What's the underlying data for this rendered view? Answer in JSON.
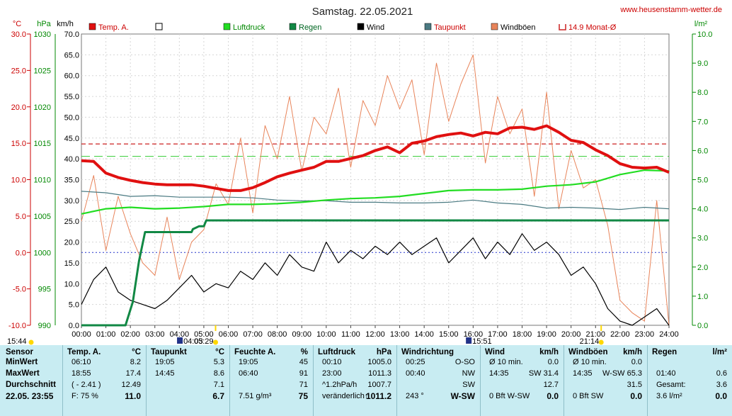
{
  "header": {
    "title": "Samstag. 22.05.2021",
    "website": "www.heusenstamm-wetter.de",
    "unit_temp": "°C",
    "unit_hpa": "hPa",
    "unit_kmh": "km/h",
    "unit_rain": "l/m²"
  },
  "legend": [
    {
      "label": "Temp. A.",
      "color": "#e01010",
      "style": "box"
    },
    {
      "label": "",
      "color": "#ffffff",
      "style": "box-empty"
    },
    {
      "label": "Luftdruck",
      "color": "#22dd22",
      "style": "box"
    },
    {
      "label": "Regen",
      "color": "#118844",
      "style": "box"
    },
    {
      "label": "Wind",
      "color": "#000000",
      "style": "box"
    },
    {
      "label": "Taupunkt",
      "color": "#4a7a82",
      "style": "box"
    },
    {
      "label": "Windböen",
      "color": "#e8845a",
      "style": "box"
    },
    {
      "label": "14.9 Monat-Ø",
      "color": "#cc2222",
      "style": "bracket"
    }
  ],
  "markers": {
    "left_time": "15:44",
    "moon_mark_1": "04:03",
    "sunrise": "05:29",
    "moon_mark_2": "15:51",
    "sunset": "21:14"
  },
  "chart_data": {
    "type": "line",
    "title": "Samstag. 22.05.2021",
    "x_ticks": [
      "00:00",
      "01:00",
      "02:00",
      "03:00",
      "04:00",
      "05:00",
      "06:00",
      "07:00",
      "08:00",
      "09:00",
      "10:00",
      "11:00",
      "12:00",
      "13:00",
      "14:00",
      "15:00",
      "16:00",
      "17:00",
      "18:00",
      "19:00",
      "20:00",
      "21:00",
      "22:00",
      "23:00",
      "24:00"
    ],
    "axes": {
      "temp": {
        "unit": "°C",
        "min": -10,
        "max": 30,
        "ticks": [
          "30.0",
          "25.0",
          "20.0",
          "15.0",
          "10.0",
          "5.0",
          "0.0",
          "-5.0",
          "-10.0"
        ]
      },
      "pressure": {
        "unit": "hPa",
        "min": 990,
        "max": 1030,
        "ticks": [
          "1030",
          "1025",
          "1020",
          "1015",
          "1010",
          "1005",
          "1000",
          "995",
          "990"
        ]
      },
      "wind": {
        "unit": "km/h",
        "min": 0,
        "max": 70,
        "ticks": [
          "70.0",
          "65.0",
          "60.0",
          "55.0",
          "50.0",
          "45.0",
          "40.0",
          "35.0",
          "30.0",
          "25.0",
          "20.0",
          "15.0",
          "10.0",
          "5.0",
          "0.0"
        ]
      },
      "rain": {
        "unit": "l/m²",
        "min": 0,
        "max": 10,
        "ticks": [
          "10.0",
          "9.0",
          "8.0",
          "7.0",
          "6.0",
          "5.0",
          "4.0",
          "3.0",
          "2.0",
          "1.0",
          "0.0"
        ]
      }
    },
    "reference_lines": {
      "monthly_avg_temp": 14.9,
      "pressure_ref": 1013.2,
      "zero_temp": 0.0
    },
    "series": [
      {
        "name": "Temp. A.",
        "axis": "temp",
        "color": "#e01010",
        "x": [
          0,
          0.5,
          1,
          1.5,
          2,
          2.5,
          3,
          3.5,
          4,
          4.5,
          5,
          5.5,
          6,
          6.5,
          7,
          7.5,
          8,
          8.5,
          9,
          9.5,
          10,
          10.5,
          11,
          11.5,
          12,
          12.5,
          13,
          13.5,
          14,
          14.5,
          15,
          15.5,
          16,
          16.5,
          17,
          17.5,
          18,
          18.5,
          19,
          19.5,
          20,
          20.5,
          21,
          21.5,
          22,
          22.5,
          23,
          23.5,
          24
        ],
        "y": [
          12.6,
          12.5,
          10.9,
          10.3,
          9.9,
          9.6,
          9.4,
          9.3,
          9.3,
          9.3,
          9.1,
          8.8,
          8.5,
          8.5,
          8.9,
          9.6,
          10.4,
          10.9,
          11.3,
          11.7,
          12.5,
          12.5,
          12.9,
          13.3,
          14.0,
          14.5,
          13.7,
          15.0,
          15.3,
          15.9,
          16.2,
          16.4,
          16.0,
          16.5,
          16.3,
          17.1,
          17.2,
          16.9,
          17.4,
          16.5,
          15.4,
          15.1,
          14.1,
          13.3,
          12.2,
          11.7,
          11.6,
          11.7,
          11.0
        ]
      },
      {
        "name": "Taupunkt",
        "axis": "temp",
        "color": "#4a7a82",
        "x": [
          0,
          1,
          2,
          3,
          4,
          5,
          6,
          7,
          8,
          9,
          10,
          11,
          12,
          13,
          14,
          15,
          16,
          17,
          18,
          19,
          20,
          21,
          22,
          23,
          24
        ],
        "y": [
          8.4,
          8.2,
          7.7,
          7.8,
          7.6,
          7.6,
          7.6,
          7.5,
          7.2,
          7.1,
          7.1,
          6.9,
          6.9,
          6.8,
          6.8,
          6.9,
          7.2,
          6.8,
          6.6,
          6.1,
          6.2,
          6.1,
          5.9,
          6.2,
          6.0
        ]
      },
      {
        "name": "Luftdruck",
        "axis": "pressure",
        "color": "#22dd22",
        "x": [
          0,
          1,
          2,
          3,
          4,
          5,
          6,
          7,
          8,
          9,
          10,
          11,
          12,
          13,
          14,
          15,
          16,
          17,
          18,
          19,
          20,
          21,
          22,
          23,
          24
        ],
        "y": [
          1005.3,
          1006.0,
          1006.2,
          1006.0,
          1006.1,
          1006.3,
          1006.6,
          1006.6,
          1006.7,
          1006.9,
          1007.2,
          1007.4,
          1007.5,
          1007.7,
          1008.1,
          1008.5,
          1008.6,
          1008.6,
          1008.7,
          1009.1,
          1009.3,
          1009.7,
          1010.7,
          1011.3,
          1011.2
        ]
      },
      {
        "name": "Regen",
        "axis": "rain",
        "color": "#118844",
        "x": [
          0,
          1.2,
          1.8,
          2.1,
          2.35,
          2.6,
          2.9,
          3.5,
          4.2,
          4.5,
          4.55,
          4.8,
          5.0,
          5.1,
          6,
          12,
          18,
          24
        ],
        "y": [
          0,
          0,
          0,
          0.8,
          2.2,
          3.2,
          3.2,
          3.2,
          3.2,
          3.2,
          3.3,
          3.4,
          3.4,
          3.6,
          3.6,
          3.6,
          3.6,
          3.6
        ]
      },
      {
        "name": "Wind",
        "axis": "wind",
        "color": "#000000",
        "x": [
          0,
          0.5,
          1,
          1.5,
          2,
          2.5,
          3,
          3.5,
          4,
          4.5,
          5,
          5.5,
          6,
          6.5,
          7,
          7.5,
          8,
          8.5,
          9,
          9.5,
          10,
          10.5,
          11,
          11.5,
          12,
          12.5,
          13,
          13.5,
          14,
          14.5,
          15,
          15.5,
          16,
          16.5,
          17,
          17.5,
          18,
          18.5,
          19,
          19.5,
          20,
          20.5,
          21,
          21.5,
          22,
          22.5,
          23,
          23.5,
          24
        ],
        "y": [
          5.0,
          11.0,
          14.0,
          8.0,
          6.0,
          5.0,
          4.0,
          6.0,
          9.0,
          12.0,
          8.0,
          10.0,
          9.0,
          13.0,
          11.0,
          15.0,
          12.0,
          17.0,
          14.0,
          13.0,
          20.0,
          15.0,
          18.0,
          16.0,
          19.0,
          17.0,
          20.0,
          17.0,
          19.0,
          21.0,
          15.0,
          18.0,
          21.0,
          16.0,
          20.0,
          17.0,
          22.0,
          18.0,
          20.0,
          17.0,
          12.0,
          14.0,
          10.0,
          4.0,
          1.0,
          0.0,
          2.0,
          4.0,
          0.0
        ]
      },
      {
        "name": "Windböen",
        "axis": "wind",
        "color": "#e8845a",
        "x": [
          0,
          0.5,
          1,
          1.5,
          2,
          2.5,
          3,
          3.5,
          4,
          4.5,
          5,
          5.5,
          6,
          6.5,
          7,
          7.5,
          8,
          8.5,
          9,
          9.5,
          10,
          10.5,
          11,
          11.5,
          12,
          12.5,
          13,
          13.5,
          14,
          14.5,
          15,
          15.5,
          16,
          16.5,
          17,
          17.5,
          18,
          18.5,
          19,
          19.5,
          20,
          20.5,
          21,
          21.5,
          22,
          22.5,
          23,
          23.5,
          24
        ],
        "y": [
          25.0,
          36.0,
          18.0,
          31.0,
          22.0,
          15.0,
          12.0,
          26.0,
          11.0,
          20.0,
          23.0,
          34.0,
          29.0,
          45.0,
          27.0,
          48.0,
          40.0,
          55.0,
          37.0,
          50.0,
          46.0,
          57.0,
          38.0,
          54.0,
          48.0,
          60.0,
          52.0,
          59.0,
          41.0,
          63.0,
          49.0,
          58.0,
          65.0,
          39.0,
          55.0,
          46.0,
          52.0,
          31.0,
          56.0,
          28.0,
          42.0,
          33.0,
          35.0,
          24.0,
          6.0,
          3.0,
          1.0,
          30.0,
          0.0
        ]
      }
    ]
  },
  "stats": {
    "sensor": {
      "header": "Sensor",
      "rows": [
        "MinWert",
        "MaxWert",
        "Durchschnitt",
        "22.05. 23:55"
      ]
    },
    "temp": {
      "header": "Temp. A.",
      "unit": "°C",
      "rows": [
        [
          "06:10",
          "8.2"
        ],
        [
          "18:55",
          "17.4"
        ],
        [
          "( - 2.41 )",
          "12.49"
        ],
        [
          "F: 75 %",
          "11.0"
        ]
      ]
    },
    "taupunkt": {
      "header": "Taupunkt",
      "unit": "°C",
      "rows": [
        [
          "19:05",
          "5.3"
        ],
        [
          "14:45",
          "8.6"
        ],
        [
          "",
          "7.1"
        ],
        [
          "",
          "6.7"
        ]
      ]
    },
    "feuchte": {
      "header": "Feuchte A.",
      "unit": "%",
      "rows": [
        [
          "19:05",
          "45"
        ],
        [
          "06:40",
          "91"
        ],
        [
          "",
          "71"
        ],
        [
          "7.51 g/m³",
          "75"
        ]
      ]
    },
    "luftdruck": {
      "header": "Luftdruck",
      "unit": "hPa",
      "rows": [
        [
          "00:10",
          "1005.0"
        ],
        [
          "23:00",
          "1011.3"
        ],
        [
          "^1.2hPa/h",
          "1007.7"
        ],
        [
          "veränderlich↑",
          "1011.2"
        ]
      ]
    },
    "windrichtung": {
      "header": "Windrichtung",
      "rows": [
        [
          "00:25",
          "O-SO"
        ],
        [
          "00:40",
          "NW"
        ],
        [
          "",
          "SW"
        ],
        [
          "243 °",
          "W-SW"
        ]
      ]
    },
    "wind": {
      "header": "Wind",
      "unit": "km/h",
      "rows": [
        [
          "Ø 10 min.",
          "0.0"
        ],
        [
          "14:35",
          "SW 31.4"
        ],
        [
          "",
          "12.7"
        ],
        [
          "0 Bft W-SW",
          "0.0"
        ]
      ]
    },
    "windboeen": {
      "header": "Windböen",
      "unit": "km/h",
      "rows": [
        [
          "Ø 10 min.",
          "0.0"
        ],
        [
          "14:35",
          "W-SW 65.3"
        ],
        [
          "",
          "31.5"
        ],
        [
          "0 Bft SW",
          "0.0"
        ]
      ]
    },
    "regen": {
      "header": "Regen",
      "unit": "l/m²",
      "rows": [
        [
          "01:40",
          "0.6"
        ],
        [
          "Gesamt:",
          "3.6"
        ],
        [
          "3.6 l/m²",
          "0.0"
        ]
      ]
    }
  }
}
